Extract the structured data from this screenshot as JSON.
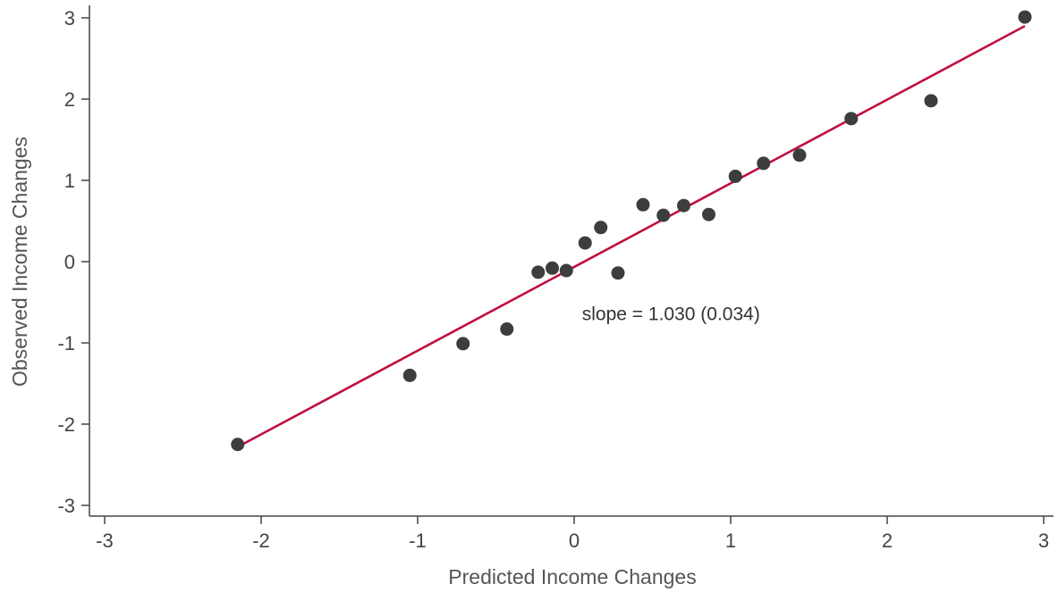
{
  "chart_data": {
    "type": "scatter",
    "title": "",
    "xlabel": "Predicted Income Changes",
    "ylabel": "Observed Income Changes",
    "xlim": [
      -3,
      3
    ],
    "ylim": [
      -3,
      3
    ],
    "xticks": [
      {
        "value": -3,
        "label": "-3"
      },
      {
        "value": -2,
        "label": "-2"
      },
      {
        "value": -1,
        "label": "-1"
      },
      {
        "value": 0,
        "label": "0"
      },
      {
        "value": 1,
        "label": "1"
      },
      {
        "value": 2,
        "label": "2"
      },
      {
        "value": 3,
        "label": "3"
      }
    ],
    "yticks": [
      {
        "value": -3,
        "label": "-3"
      },
      {
        "value": -2,
        "label": "-2"
      },
      {
        "value": -1,
        "label": "-1"
      },
      {
        "value": 0,
        "label": "0"
      },
      {
        "value": 1,
        "label": "1"
      },
      {
        "value": 2,
        "label": "2"
      },
      {
        "value": 3,
        "label": "3"
      }
    ],
    "grid": false,
    "points": [
      {
        "x": -2.15,
        "y": -2.25
      },
      {
        "x": -1.05,
        "y": -1.4
      },
      {
        "x": -0.71,
        "y": -1.01
      },
      {
        "x": -0.43,
        "y": -0.83
      },
      {
        "x": -0.23,
        "y": -0.13
      },
      {
        "x": -0.14,
        "y": -0.08
      },
      {
        "x": -0.05,
        "y": -0.11
      },
      {
        "x": 0.07,
        "y": 0.23
      },
      {
        "x": 0.17,
        "y": 0.42
      },
      {
        "x": 0.28,
        "y": -0.14
      },
      {
        "x": 0.44,
        "y": 0.7
      },
      {
        "x": 0.57,
        "y": 0.57
      },
      {
        "x": 0.7,
        "y": 0.69
      },
      {
        "x": 0.86,
        "y": 0.58
      },
      {
        "x": 1.03,
        "y": 1.05
      },
      {
        "x": 1.21,
        "y": 1.21
      },
      {
        "x": 1.44,
        "y": 1.31
      },
      {
        "x": 1.77,
        "y": 1.76
      },
      {
        "x": 2.28,
        "y": 1.98
      },
      {
        "x": 2.88,
        "y": 3.01
      }
    ],
    "fit_line": {
      "x1": -2.15,
      "y1": -2.28,
      "x2": 2.88,
      "y2": 2.9
    },
    "annotation": {
      "text": "slope = 1.030 (0.034)",
      "x": 0.05,
      "y": -0.72
    },
    "colors": {
      "point": "#3d3d3d",
      "line": "#c0103c",
      "axis": "#444444"
    }
  }
}
